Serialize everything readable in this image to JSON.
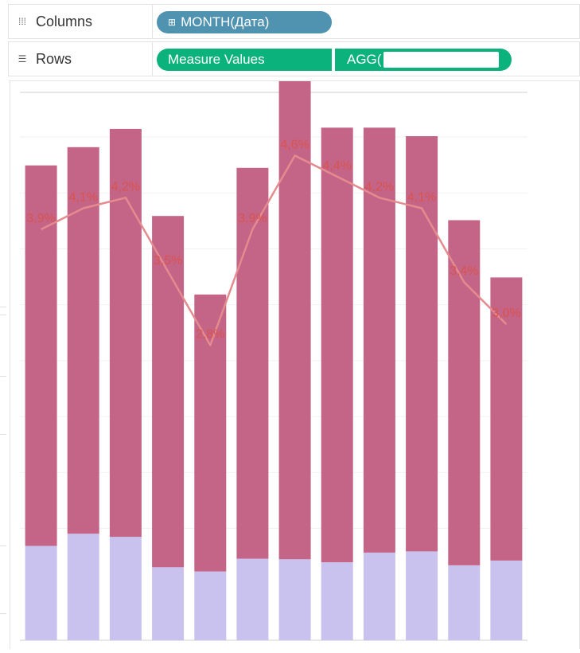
{
  "shelves": {
    "columns": {
      "label": "Columns",
      "icon": "columns-icon",
      "pills": [
        {
          "label": "MONTH(Дата)",
          "color": "#4f93b1",
          "icon": "plus-box-icon"
        }
      ]
    },
    "rows": {
      "label": "Rows",
      "icon": "rows-icon",
      "pills": [
        {
          "label": "Measure Values",
          "color": "#0cb27b"
        },
        {
          "label": "AGG(",
          "color": "#0cb27b"
        }
      ]
    }
  },
  "chart_data": {
    "type": "bar",
    "categories": [
      "",
      "",
      "",
      "",
      "",
      "",
      "",
      "",
      "",
      "",
      "",
      ""
    ],
    "series": [
      {
        "values": [
          1.55,
          1.75,
          1.7,
          1.2,
          1.13,
          1.34,
          1.33,
          1.28,
          1.44,
          1.46,
          1.23,
          1.31
        ],
        "color": "#c9c2ef"
      },
      {
        "values": [
          6.25,
          6.35,
          6.7,
          5.77,
          4.55,
          6.42,
          7.92,
          7.14,
          6.98,
          6.82,
          5.67,
          4.65
        ],
        "color": "#c46487"
      }
    ],
    "stacked": true,
    "line": {
      "values": [
        3.9,
        4.1,
        4.2,
        3.5,
        2.8,
        3.9,
        4.6,
        4.4,
        4.2,
        4.1,
        3.4,
        3.0
      ],
      "labels": [
        "3,9%",
        "4,1%",
        "4,2%",
        "3,5%",
        "2,8%",
        "3,9%",
        "4,6%",
        "4,4%",
        "4,2%",
        "4,1%",
        "3,4%",
        "3,0%"
      ],
      "color": "#e48b8f",
      "label_color": "#d9534f",
      "ylim": [
        0,
        5.2
      ]
    },
    "ylim": [
      0,
      9.0
    ],
    "grid": true,
    "title": "",
    "xlabel": "",
    "ylabel": ""
  }
}
